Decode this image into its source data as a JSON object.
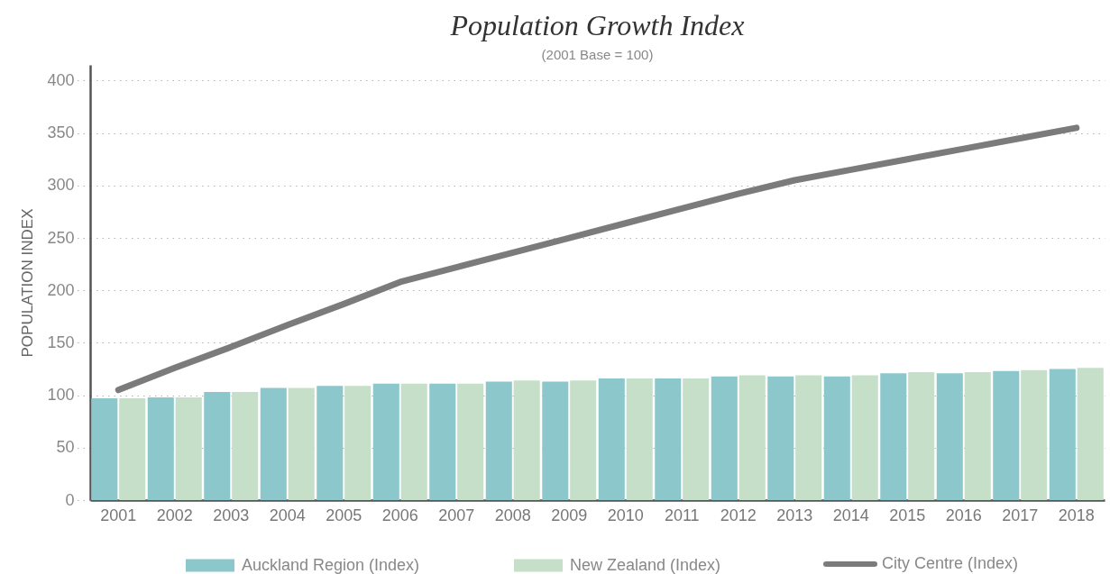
{
  "chart_data": {
    "type": "bar",
    "title": "Population Growth Index",
    "subtitle": "(2001 Base = 100)",
    "ylabel": "POPULATION INDEX",
    "categories": [
      "2001",
      "2002",
      "2003",
      "2004",
      "2005",
      "2006",
      "2007",
      "2008",
      "2009",
      "2010",
      "2011",
      "2012",
      "2013",
      "2014",
      "2015",
      "2016",
      "2017",
      "2018"
    ],
    "series": [
      {
        "name": "Auckland Region (Index)",
        "color": "#8cc7cb",
        "values": [
          97,
          98,
          103,
          107,
          109,
          111,
          111,
          113,
          113,
          116,
          116,
          118,
          118,
          118,
          121,
          121,
          123,
          125
        ]
      },
      {
        "name": "New Zealand (Index)",
        "color": "#c6dfc8",
        "values": [
          97,
          98,
          103,
          107,
          109,
          111,
          111,
          114,
          114,
          116,
          116,
          119,
          119,
          119,
          122,
          122,
          124,
          126
        ]
      },
      {
        "name": "City Centre (Index)",
        "type": "line",
        "color": "#7b7b7b",
        "values": [
          105,
          126,
          146,
          167,
          187,
          208,
          222,
          236,
          250,
          264,
          278,
          292,
          305,
          315,
          325,
          335,
          345,
          355
        ]
      }
    ],
    "ylim": [
      0,
      415
    ],
    "yticks": [
      0,
      50,
      100,
      150,
      200,
      250,
      300,
      350,
      400
    ],
    "grid": "y",
    "legend": "bottom"
  }
}
